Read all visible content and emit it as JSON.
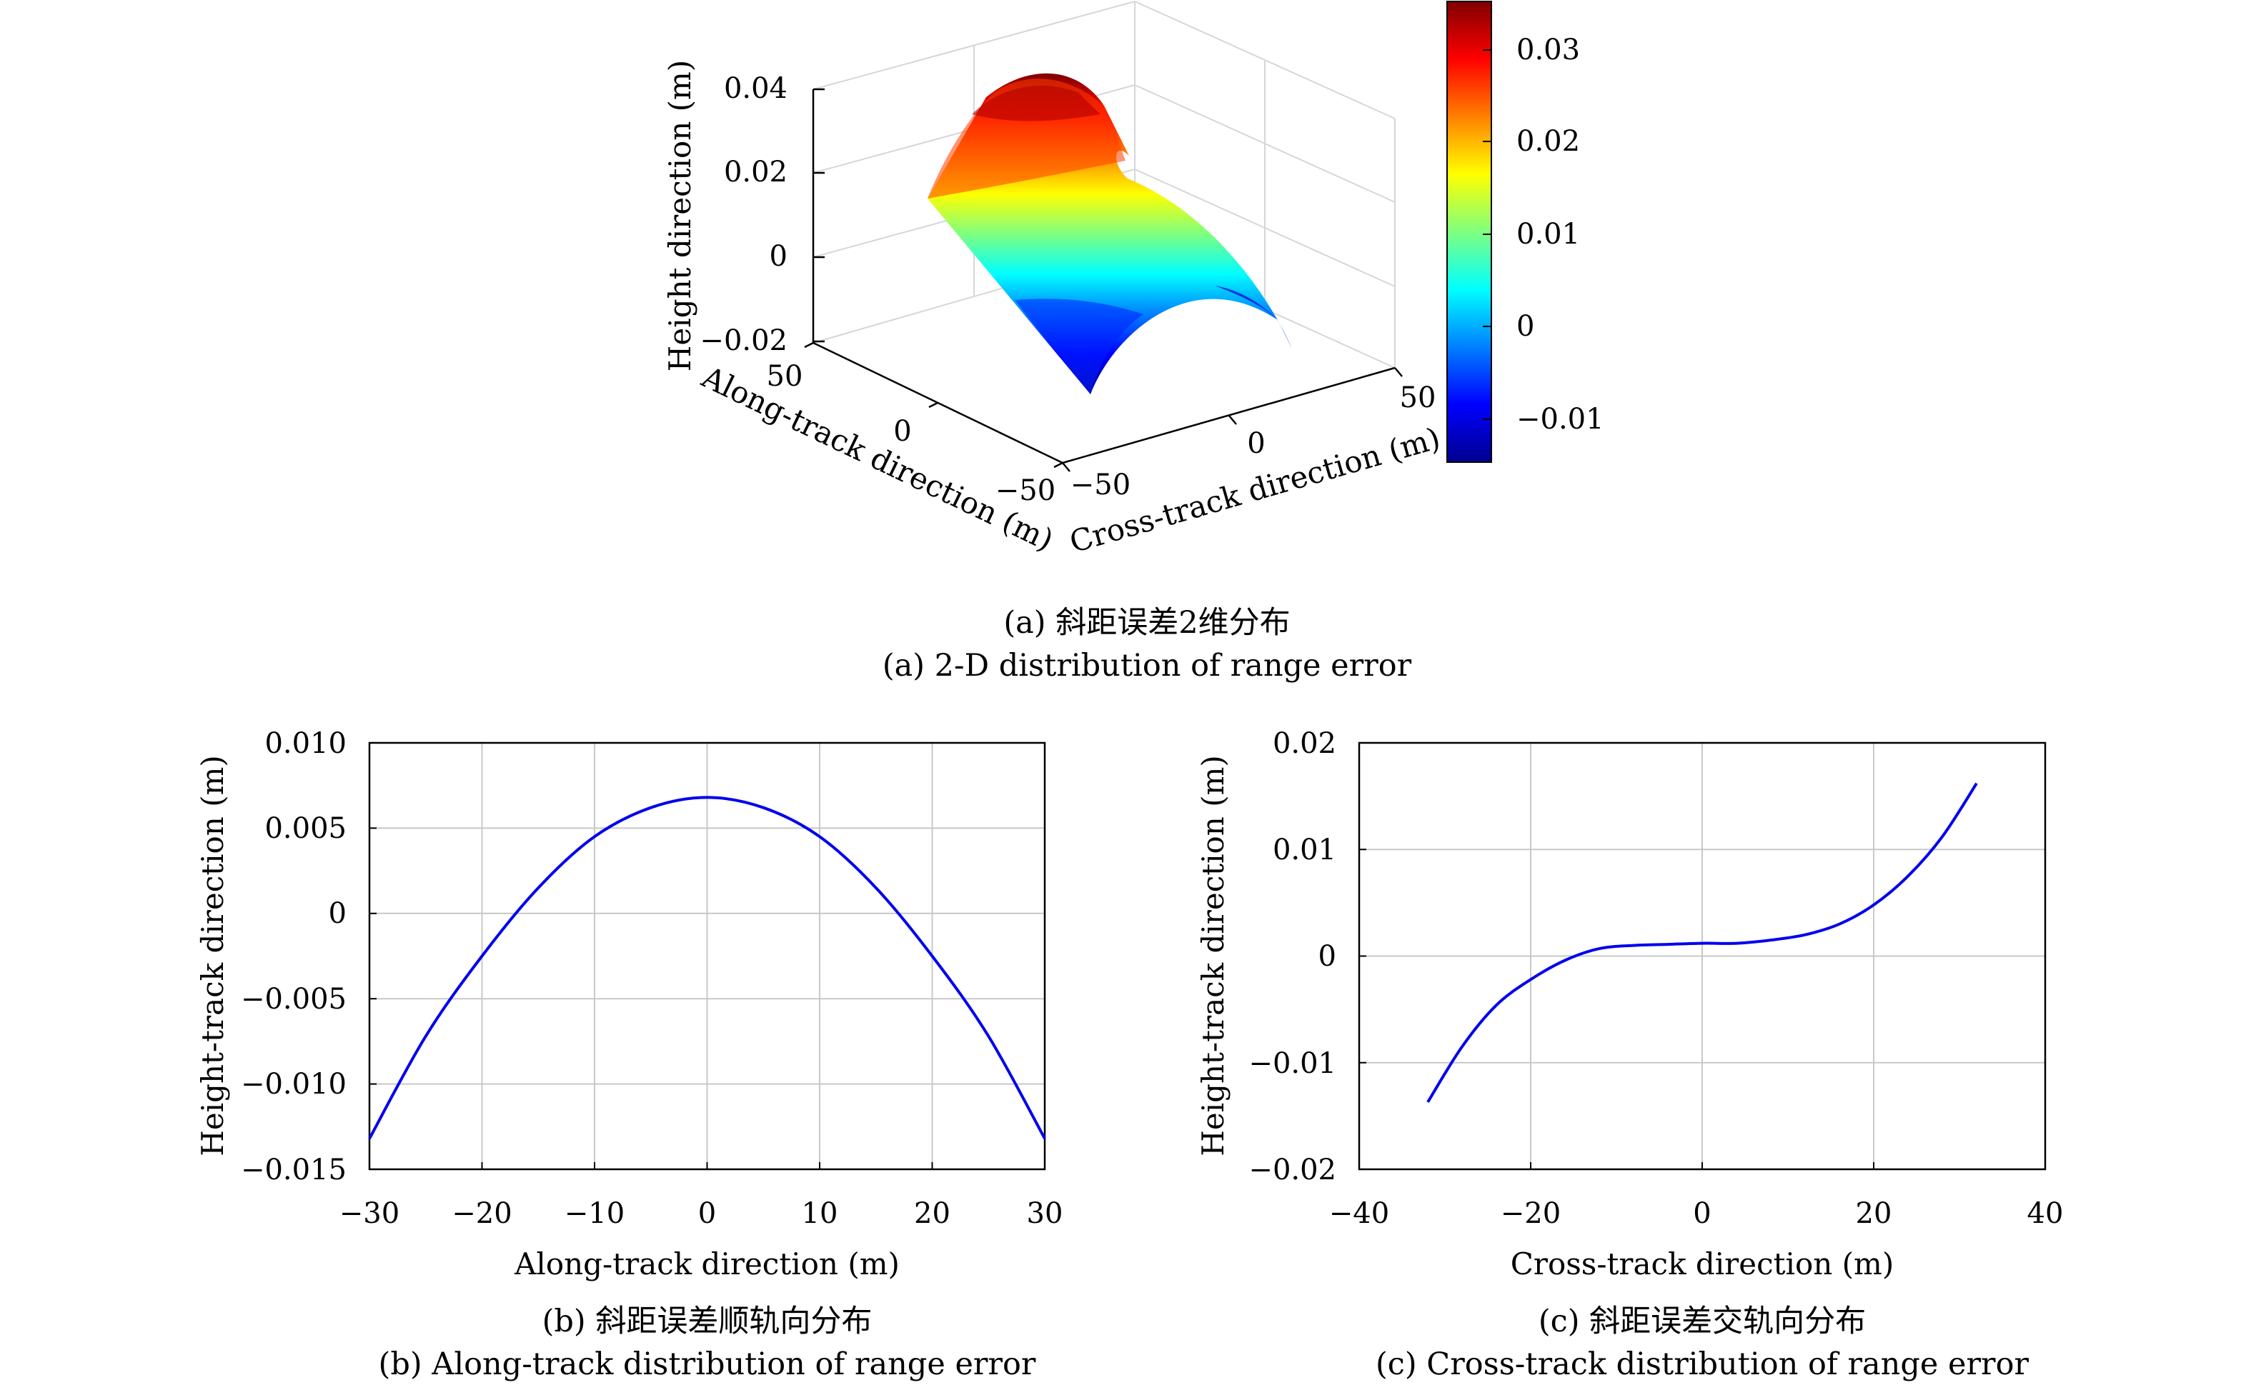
{
  "figure": {
    "caption_a_zh": "(a) 斜距误差2维分布",
    "caption_a_en": "(a) 2-D distribution of range error",
    "caption_b_zh": "(b) 斜距误差顺轨向分布",
    "caption_b_en": "(b) Along-track distribution of range error",
    "caption_c_zh": "(c) 斜距误差交轨向分布",
    "caption_c_en": "(c) Cross-track distribution of range error"
  },
  "colors": {
    "line": "#0000ee",
    "grid": "#c8c8c8",
    "axis": "#000000"
  },
  "chart_data": [
    {
      "type": "surface",
      "zlabel": "Height direction (m)",
      "xlabel": "Along-track direction (m)",
      "ylabel": "Cross-track direction (m)",
      "x_ticks": [
        "50",
        "0",
        "−50"
      ],
      "y_ticks": [
        "−50",
        "0",
        "50"
      ],
      "z_ticks": [
        "0.04",
        "0.02",
        "0",
        "−0.02"
      ],
      "zlim": [
        -0.02,
        0.04
      ],
      "xlim": [
        -50,
        50
      ],
      "ylim": [
        -50,
        50
      ],
      "colormap": "jet",
      "colorbar_ticks": [
        "0.03",
        "0.02",
        "0.01",
        "0",
        "−0.01"
      ],
      "colorbar_range": [
        -0.015,
        0.035
      ],
      "grid": true
    },
    {
      "type": "line",
      "xlabel": "Along-track direction (m)",
      "ylabel": "Height-track direction (m)",
      "xlim": [
        -30,
        30
      ],
      "ylim": [
        -0.015,
        0.01
      ],
      "x_ticks": [
        "−30",
        "−20",
        "−10",
        "0",
        "10",
        "20",
        "30"
      ],
      "y_ticks": [
        "0.010",
        "0.005",
        "0",
        "−0.005",
        "−0.010",
        "−0.015"
      ],
      "grid": true,
      "series": [
        {
          "x": [
            -30,
            -25,
            -20,
            -15,
            -10,
            -5,
            0,
            5,
            10,
            15,
            20,
            25,
            30
          ],
          "y": [
            -0.0132,
            -0.0072,
            -0.0025,
            0.0015,
            0.0045,
            0.0062,
            0.0068,
            0.0062,
            0.0045,
            0.0015,
            -0.0025,
            -0.0072,
            -0.0132
          ]
        }
      ]
    },
    {
      "type": "line",
      "xlabel": "Cross-track direction (m)",
      "ylabel": "Height-track direction (m)",
      "xlim": [
        -40,
        40
      ],
      "ylim": [
        -0.02,
        0.02
      ],
      "x_ticks": [
        "−40",
        "−20",
        "0",
        "20",
        "40"
      ],
      "y_ticks": [
        "0.02",
        "0.01",
        "0",
        "−0.01",
        "−0.02"
      ],
      "grid": true,
      "series": [
        {
          "x": [
            -32,
            -28,
            -24,
            -20,
            -16,
            -12,
            -8,
            -4,
            0,
            4,
            8,
            12,
            16,
            20,
            24,
            28,
            32
          ],
          "y": [
            -0.0137,
            -0.0085,
            -0.0046,
            -0.0022,
            -0.0004,
            0.0007,
            0.001,
            0.0011,
            0.0012,
            0.0012,
            0.0015,
            0.002,
            0.003,
            0.0048,
            0.0075,
            0.0112,
            0.0162
          ]
        }
      ]
    }
  ]
}
